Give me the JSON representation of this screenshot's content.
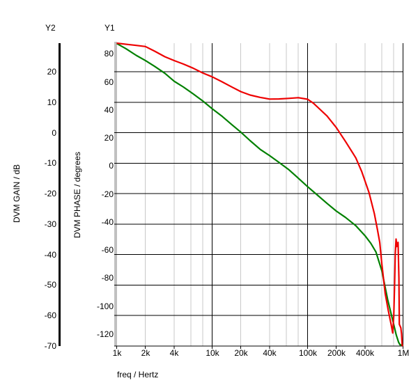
{
  "labels": {
    "y2_name": "Y2",
    "y1_name": "Y1",
    "gain_axis_title": "DVM GAIN / dB",
    "phase_axis_title": "DVM PHASE / degrees",
    "x_axis_title": "freq / Hertz"
  },
  "colors": {
    "background": "#ffffff",
    "text": "#000000",
    "gain_line": "#008000",
    "phase_line": "#ee0000",
    "major_grid": "#000000",
    "minor_grid": "#c8c8c8",
    "y1_axis": "#c0c0c0",
    "y2_axis": "#000000"
  },
  "chart_data": {
    "type": "line",
    "title": "",
    "grid": true,
    "legend": "none",
    "x_axis": {
      "label": "freq / Hertz",
      "scale": "log",
      "range": [
        1000,
        1000000
      ],
      "ticks": [
        {
          "label": "1k",
          "value": 1000
        },
        {
          "label": "2k",
          "value": 2000
        },
        {
          "label": "4k",
          "value": 4000
        },
        {
          "label": "10k",
          "value": 10000
        },
        {
          "label": "20k",
          "value": 20000
        },
        {
          "label": "40k",
          "value": 40000
        },
        {
          "label": "100k",
          "value": 100000
        },
        {
          "label": "200k",
          "value": 200000
        },
        {
          "label": "400k",
          "value": 400000
        },
        {
          "label": "1M",
          "value": 1000000
        }
      ],
      "minor_grid": {
        "decades": [
          1000,
          10000,
          100000
        ],
        "multipliers": [
          2,
          4,
          6,
          8
        ]
      },
      "major_grid_values": [
        10000,
        100000,
        1000000
      ]
    },
    "y1_axis": {
      "name": "Y1",
      "label": "DVM PHASE / degrees",
      "units": "degrees",
      "range": [
        -128.5,
        87.6
      ],
      "ticks": [
        {
          "label": "80",
          "value": 80
        },
        {
          "label": "60",
          "value": 60
        },
        {
          "label": "40",
          "value": 40
        },
        {
          "label": "20",
          "value": 20
        },
        {
          "label": "0",
          "value": 0
        },
        {
          "label": "-20",
          "value": -20
        },
        {
          "label": "-40",
          "value": -40
        },
        {
          "label": "-60",
          "value": -60
        },
        {
          "label": "-80",
          "value": -80
        },
        {
          "label": "-100",
          "value": -100
        },
        {
          "label": "-120",
          "value": -120
        }
      ]
    },
    "y2_axis": {
      "name": "Y2",
      "label": "DVM GAIN / dB",
      "units": "dB",
      "range": [
        -70,
        29.4
      ],
      "gridline_values": [
        20,
        10,
        0,
        -10,
        -20,
        -30,
        -40,
        -50,
        -60
      ],
      "ticks": [
        {
          "label": "20",
          "value": 20
        },
        {
          "label": "10",
          "value": 10
        },
        {
          "label": "0",
          "value": 0
        },
        {
          "label": "-10",
          "value": -10
        },
        {
          "label": "-20",
          "value": -20
        },
        {
          "label": "-30",
          "value": -30
        },
        {
          "label": "-40",
          "value": -40
        },
        {
          "label": "-50",
          "value": -50
        },
        {
          "label": "-60",
          "value": -60
        },
        {
          "label": "-70",
          "value": -70
        }
      ]
    },
    "series": [
      {
        "name": "DVM GAIN",
        "axis": "y2",
        "color": "#008000",
        "points": [
          [
            1000,
            29.3
          ],
          [
            1250,
            27.6
          ],
          [
            1600,
            25.4
          ],
          [
            2000,
            23.7
          ],
          [
            2500,
            21.8
          ],
          [
            3200,
            19.5
          ],
          [
            4000,
            16.9
          ],
          [
            5000,
            15.0
          ],
          [
            6300,
            12.8
          ],
          [
            8000,
            10.4
          ],
          [
            10000,
            7.9
          ],
          [
            12500,
            5.6
          ],
          [
            16000,
            2.7
          ],
          [
            20000,
            0.2
          ],
          [
            25000,
            -2.6
          ],
          [
            32000,
            -5.5
          ],
          [
            40000,
            -7.5
          ],
          [
            50000,
            -9.7
          ],
          [
            63000,
            -12.0
          ],
          [
            80000,
            -14.9
          ],
          [
            100000,
            -17.7
          ],
          [
            125000,
            -20.3
          ],
          [
            160000,
            -23.2
          ],
          [
            200000,
            -25.7
          ],
          [
            250000,
            -27.8
          ],
          [
            320000,
            -30.5
          ],
          [
            400000,
            -33.8
          ],
          [
            460000,
            -36.3
          ],
          [
            520000,
            -39.1
          ],
          [
            600000,
            -45.3
          ],
          [
            690000,
            -54.7
          ],
          [
            790000,
            -62.3
          ],
          [
            850000,
            -66.4
          ],
          [
            900000,
            -68.8
          ],
          [
            930000,
            -69.6
          ],
          [
            1000000,
            -69.7
          ]
        ]
      },
      {
        "name": "DVM PHASE",
        "axis": "y1",
        "color": "#ee0000",
        "points": [
          [
            1000,
            87.6
          ],
          [
            1300,
            86.7
          ],
          [
            1600,
            86.0
          ],
          [
            2000,
            85.2
          ],
          [
            2500,
            81.9
          ],
          [
            3200,
            77.9
          ],
          [
            4000,
            75.2
          ],
          [
            5000,
            72.7
          ],
          [
            6300,
            69.8
          ],
          [
            8000,
            66.3
          ],
          [
            10000,
            63.6
          ],
          [
            12500,
            60.3
          ],
          [
            16000,
            56.4
          ],
          [
            20000,
            53.0
          ],
          [
            25000,
            50.6
          ],
          [
            32000,
            48.9
          ],
          [
            40000,
            47.7
          ],
          [
            50000,
            47.8
          ],
          [
            63000,
            48.2
          ],
          [
            80000,
            48.7
          ],
          [
            100000,
            47.6
          ],
          [
            115000,
            44.8
          ],
          [
            130000,
            41.4
          ],
          [
            160000,
            35.6
          ],
          [
            200000,
            27.4
          ],
          [
            250000,
            17.4
          ],
          [
            320000,
            5.8
          ],
          [
            370000,
            -4.1
          ],
          [
            440000,
            -19.0
          ],
          [
            500000,
            -33.9
          ],
          [
            540000,
            -45.5
          ],
          [
            570000,
            -54.6
          ],
          [
            600000,
            -70.0
          ],
          [
            650000,
            -91.0
          ],
          [
            700000,
            -103.0
          ],
          [
            750000,
            -113.0
          ],
          [
            780000,
            -119.2
          ],
          [
            800000,
            -107.0
          ],
          [
            815000,
            -87.0
          ],
          [
            830000,
            -62.0
          ],
          [
            845000,
            -52.2
          ],
          [
            862000,
            -57.5
          ],
          [
            888000,
            -54.5
          ],
          [
            905000,
            -80.0
          ],
          [
            915000,
            -113.0
          ],
          [
            950000,
            -115.5
          ],
          [
            965000,
            -120.0
          ],
          [
            980000,
            -128.0
          ],
          [
            1000000,
            -128.4
          ]
        ]
      }
    ]
  }
}
